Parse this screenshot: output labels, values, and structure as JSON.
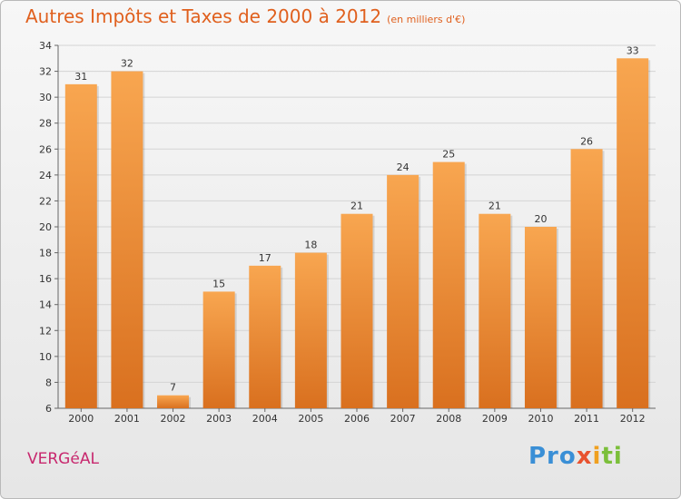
{
  "header": {
    "title": "Autres Impôts et Taxes de 2000 à 2012",
    "subtitle": "(en milliers d'€)"
  },
  "footer": {
    "place": "VERGéAL",
    "logo": [
      "Pro",
      "x",
      "i",
      "ti"
    ]
  },
  "colors": {
    "bar_light": "#f8a650",
    "bar_dark": "#d9701f",
    "title": "#e0601e",
    "place": "#c8286e"
  },
  "chart_data": {
    "type": "bar",
    "title": "Autres Impôts et Taxes de 2000 à 2012",
    "xlabel": "",
    "ylabel": "",
    "categories": [
      "2000",
      "2001",
      "2002",
      "2003",
      "2004",
      "2005",
      "2006",
      "2007",
      "2008",
      "2009",
      "2010",
      "2011",
      "2012"
    ],
    "values": [
      31,
      32,
      7,
      15,
      17,
      18,
      21,
      24,
      25,
      21,
      20,
      26,
      33
    ],
    "ylim": [
      6,
      34
    ],
    "yticks": [
      6,
      8,
      10,
      12,
      14,
      16,
      18,
      20,
      22,
      24,
      26,
      28,
      30,
      32,
      34
    ],
    "grid": true,
    "legend": "none"
  }
}
